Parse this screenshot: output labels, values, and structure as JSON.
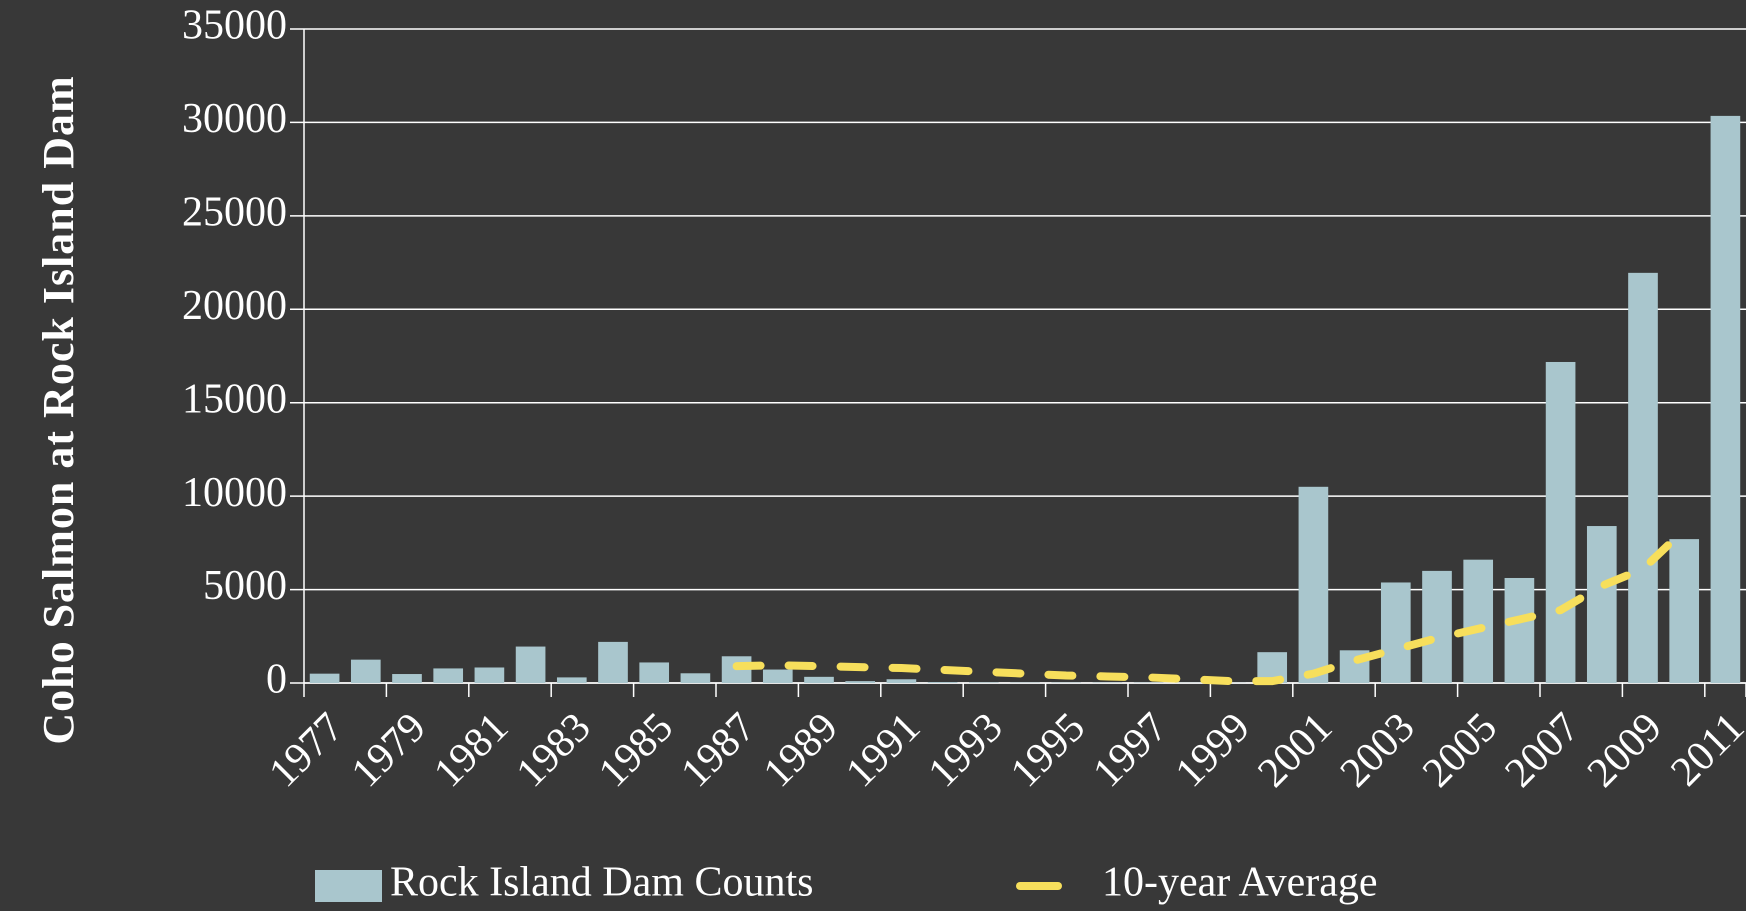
{
  "chart_data": {
    "type": "bar",
    "y_label": "Coho Salmon at Rock Island Dam",
    "categories": [
      "1977",
      null,
      "1979",
      null,
      "1981",
      null,
      "1983",
      null,
      "1985",
      null,
      "1987",
      null,
      "1989",
      null,
      "1991",
      null,
      "1993",
      null,
      "1995",
      null,
      "1997",
      null,
      "1999",
      null,
      "2001",
      null,
      "2003",
      null,
      "2005",
      null,
      "2007",
      null,
      "2009",
      null,
      "2011"
    ],
    "series": [
      {
        "name": "Rock Island Dam Counts",
        "type": "bar",
        "color": "#a9c6cd",
        "values": [
          500,
          1250,
          480,
          780,
          830,
          1950,
          300,
          2200,
          1100,
          520,
          1430,
          720,
          330,
          100,
          200,
          50,
          30,
          20,
          20,
          20,
          20,
          10,
          10,
          1650,
          10500,
          1750,
          5380,
          6000,
          6600,
          5620,
          17180,
          8400,
          21950,
          7700,
          30350
        ]
      },
      {
        "name": "10-year Average",
        "type": "line",
        "color": "#f7df5c",
        "dashed": true,
        "values": [
          null,
          null,
          null,
          null,
          null,
          null,
          null,
          null,
          null,
          null,
          900,
          950,
          900,
          850,
          800,
          700,
          600,
          500,
          400,
          350,
          300,
          200,
          100,
          100,
          500,
          1200,
          1800,
          2400,
          2900,
          3400,
          3900,
          5200,
          6100,
          8200,
          null
        ]
      }
    ],
    "ylim": [
      0,
      35000
    ],
    "yticks": [
      0,
      5000,
      10000,
      15000,
      20000,
      25000,
      30000,
      35000
    ],
    "grid": true,
    "legend": "bottom"
  }
}
